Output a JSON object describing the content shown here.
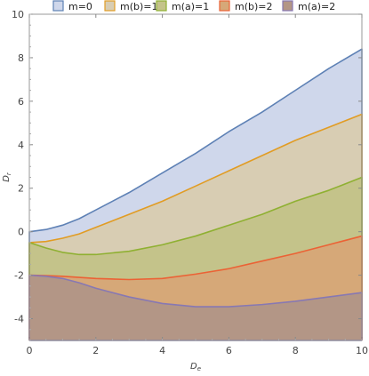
{
  "chart_data": {
    "type": "area",
    "title": "",
    "xlabel": "D_e",
    "xlabel_main": "D",
    "xlabel_sub": "e",
    "ylabel": "D_r",
    "ylabel_main": "D",
    "ylabel_sub": "r",
    "xlim": [
      0,
      10
    ],
    "ylim": [
      -5,
      10
    ],
    "xticks": [
      "0",
      "2",
      "4",
      "6",
      "8",
      "10"
    ],
    "yticks": [
      "-4",
      "-2",
      "0",
      "2",
      "4",
      "6",
      "8",
      "10"
    ],
    "tick_values_x": [
      0,
      2,
      4,
      6,
      8,
      10
    ],
    "tick_values_y": [
      -4,
      -2,
      0,
      2,
      4,
      6,
      8,
      10
    ],
    "legend_position": "top",
    "grid": false,
    "fill_to": -5,
    "x": [
      0,
      0.5,
      1,
      1.5,
      2,
      3,
      4,
      5,
      6,
      7,
      8,
      9,
      10
    ],
    "series": [
      {
        "name": "m=0",
        "color": "#5e81b5",
        "fill": "#cfd7eb",
        "values": [
          0,
          0.1,
          0.3,
          0.6,
          1.0,
          1.8,
          2.7,
          3.6,
          4.6,
          5.5,
          6.5,
          7.5,
          8.4
        ]
      },
      {
        "name": "m(b)=1",
        "color": "#e19c24",
        "fill": "#d8cdb3",
        "values": [
          -0.5,
          -0.45,
          -0.3,
          -0.1,
          0.2,
          0.8,
          1.4,
          2.1,
          2.8,
          3.5,
          4.2,
          4.8,
          5.4
        ]
      },
      {
        "name": "m(a)=1",
        "color": "#8fb032",
        "fill": "#c4c38a",
        "values": [
          -0.5,
          -0.75,
          -0.95,
          -1.05,
          -1.05,
          -0.9,
          -0.6,
          -0.2,
          0.3,
          0.8,
          1.4,
          1.9,
          2.5
        ]
      },
      {
        "name": "m(b)=2",
        "color": "#eb6235",
        "fill": "#d6a878",
        "values": [
          -2.0,
          -2.02,
          -2.05,
          -2.1,
          -2.15,
          -2.2,
          -2.15,
          -1.95,
          -1.7,
          -1.35,
          -1.0,
          -0.6,
          -0.2
        ]
      },
      {
        "name": "m(a)=2",
        "color": "#8778b3",
        "fill": "#b39686",
        "values": [
          -2.0,
          -2.05,
          -2.15,
          -2.35,
          -2.6,
          -3.0,
          -3.3,
          -3.45,
          -3.45,
          -3.35,
          -3.2,
          -3.0,
          -2.8
        ]
      }
    ]
  }
}
